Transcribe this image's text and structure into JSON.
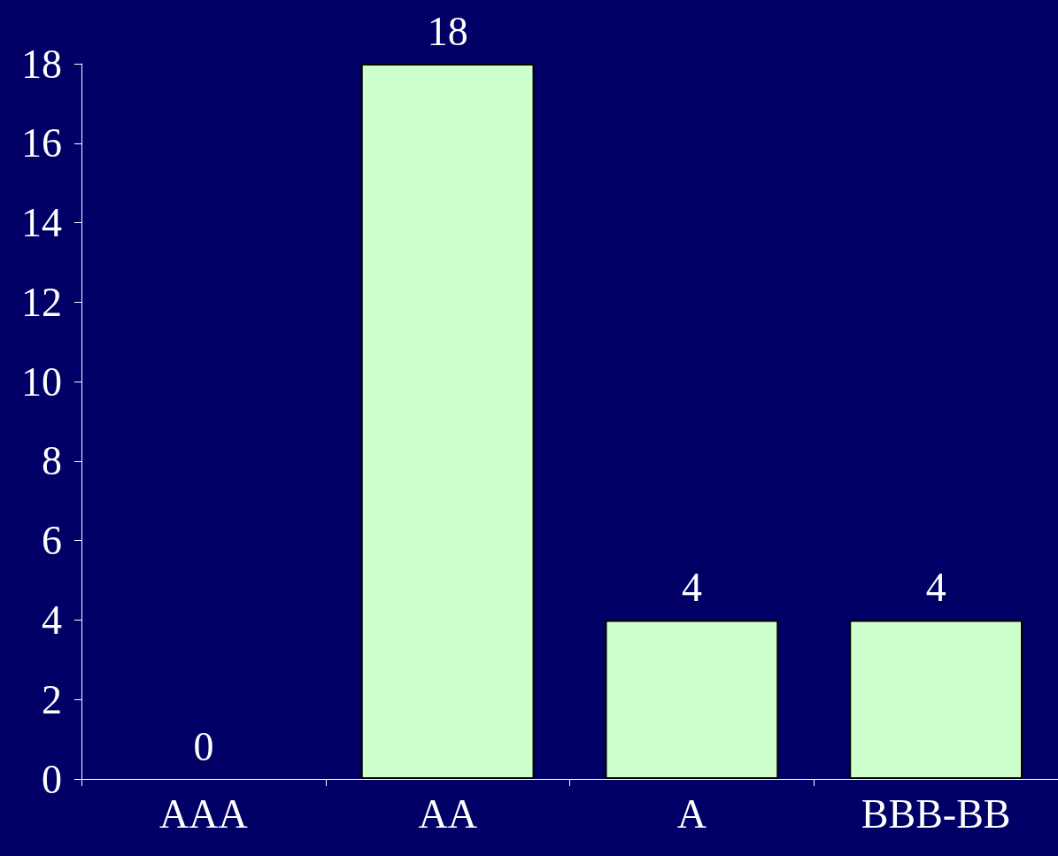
{
  "chart_data": {
    "type": "bar",
    "categories": [
      "AAA",
      "AA",
      "A",
      "BBB-BB"
    ],
    "values": [
      0,
      18,
      4,
      4
    ],
    "color": "#ccffcc",
    "ylim": [
      0,
      18
    ],
    "yticks": [
      0,
      2,
      4,
      6,
      8,
      10,
      12,
      14,
      16,
      18
    ],
    "grid": false,
    "data_labels": true
  }
}
